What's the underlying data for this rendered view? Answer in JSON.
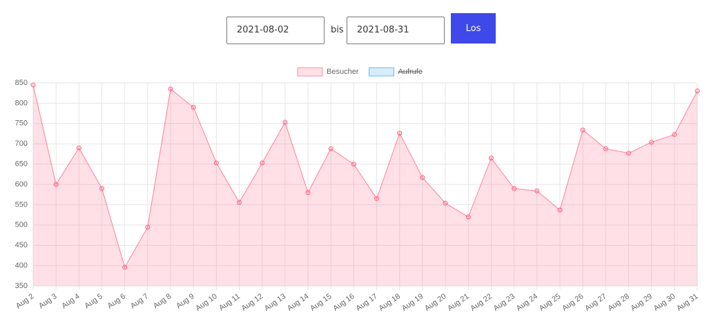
{
  "form": {
    "from": "2021-08-02",
    "separator": "bis",
    "to": "2021-08-31",
    "button": "Los"
  },
  "chart_data": {
    "type": "line",
    "categories": [
      "Aug 2",
      "Aug 3",
      "Aug 4",
      "Aug 5",
      "Aug 6",
      "Aug 7",
      "Aug 8",
      "Aug 9",
      "Aug 10",
      "Aug 11",
      "Aug 12",
      "Aug 13",
      "Aug 14",
      "Aug 15",
      "Aug 16",
      "Aug 17",
      "Aug 18",
      "Aug 19",
      "Aug 20",
      "Aug 21",
      "Aug 22",
      "Aug 23",
      "Aug 24",
      "Aug 25",
      "Aug 26",
      "Aug 27",
      "Aug 28",
      "Aug 29",
      "Aug 30",
      "Aug 31"
    ],
    "series": [
      {
        "name": "Besucher",
        "color": "#ff6384",
        "fill": true,
        "values": [
          845,
          600,
          690,
          590,
          396,
          495,
          835,
          790,
          653,
          556,
          653,
          753,
          580,
          688,
          650,
          565,
          726,
          617,
          554,
          520,
          665,
          590,
          584,
          537,
          734,
          688,
          677,
          704,
          723,
          830
        ]
      },
      {
        "name": "Aufrufe",
        "color": "#36a2eb",
        "hidden": true
      }
    ],
    "ylim": [
      350,
      850
    ],
    "yticks": [
      350,
      400,
      450,
      500,
      550,
      600,
      650,
      700,
      750,
      800,
      850
    ],
    "grid": true,
    "legend": "top"
  }
}
